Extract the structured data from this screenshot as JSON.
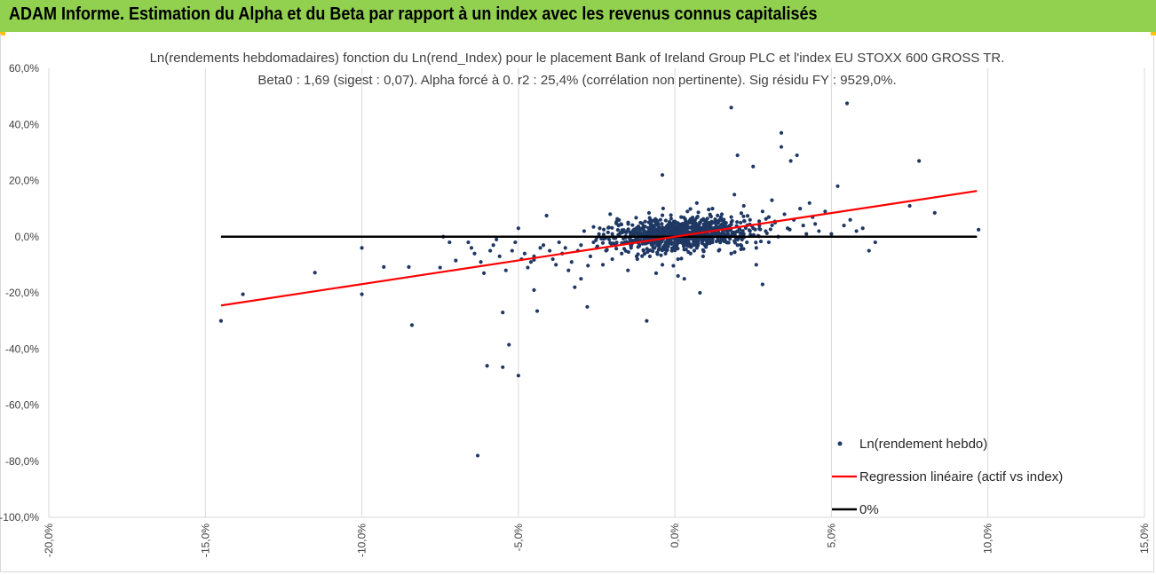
{
  "header": {
    "title": "ADAM Informe. Estimation du Alpha et du Beta par rapport à un index avec les revenus connus capitalisés"
  },
  "colors": {
    "banner": "#92d050",
    "accent": "#ffc000",
    "points": "#1f3864",
    "regression": "#ff0000",
    "zero": "#000000",
    "grid": "#d9d9d9"
  },
  "chart_data": {
    "type": "scatter",
    "title": "Ln(rendements hebdomadaires) fonction du Ln(rend_Index) pour le placement Bank of Ireland Group PLC et l'index EU STOXX 600 GROSS TR.",
    "subtitle": "Beta0 : 1,69 (sigest : 0,07). Alpha forcé à 0. r2 : 25,4% (corrélation non pertinente). Sig résidu FY : 9529,0%.",
    "xlabel": "",
    "ylabel": "",
    "xlim": [
      -0.2,
      0.15
    ],
    "ylim": [
      -1.0,
      0.6
    ],
    "x_ticks": [
      -0.2,
      -0.15,
      -0.1,
      -0.05,
      0.0,
      0.05,
      0.1,
      0.15
    ],
    "x_tick_labels": [
      "-20,0%",
      "-15,0%",
      "-10,0%",
      "-5,0%",
      "0,0%",
      "5,0%",
      "10,0%",
      "15,0%"
    ],
    "y_ticks": [
      0.6,
      0.4,
      0.2,
      0.0,
      -0.2,
      -0.4,
      -0.6,
      -0.8,
      -1.0
    ],
    "y_tick_labels": [
      "60,0%",
      "40,0%",
      "20,0%",
      "0,0%",
      "-20,0%",
      "-40,0%",
      "-60,0%",
      "-80,0%",
      "-100,0%"
    ],
    "grid": {
      "vertical": true,
      "horizontal": false
    },
    "legend_position": "bottom-right",
    "series": [
      {
        "name": "Ln(rendement hebdo)",
        "kind": "scatter",
        "points": [
          [
            -0.145,
            -0.3
          ],
          [
            -0.138,
            -0.205
          ],
          [
            -0.115,
            -0.128
          ],
          [
            -0.1,
            -0.04
          ],
          [
            -0.1,
            -0.205
          ],
          [
            -0.093,
            -0.108
          ],
          [
            -0.085,
            -0.108
          ],
          [
            -0.084,
            -0.315
          ],
          [
            -0.075,
            -0.11
          ],
          [
            -0.074,
            0.0
          ],
          [
            -0.072,
            -0.02
          ],
          [
            -0.07,
            -0.085
          ],
          [
            -0.066,
            -0.02
          ],
          [
            -0.065,
            -0.04
          ],
          [
            -0.064,
            -0.06
          ],
          [
            -0.063,
            -0.78
          ],
          [
            -0.062,
            -0.09
          ],
          [
            -0.061,
            -0.13
          ],
          [
            -0.06,
            -0.46
          ],
          [
            -0.059,
            -0.05
          ],
          [
            -0.058,
            -0.03
          ],
          [
            -0.057,
            -0.01
          ],
          [
            -0.056,
            -0.07
          ],
          [
            -0.055,
            -0.465
          ],
          [
            -0.055,
            -0.27
          ],
          [
            -0.054,
            -0.12
          ],
          [
            -0.053,
            -0.385
          ],
          [
            -0.052,
            -0.05
          ],
          [
            -0.051,
            -0.02
          ],
          [
            -0.05,
            -0.495
          ],
          [
            -0.05,
            0.03
          ],
          [
            -0.049,
            -0.08
          ],
          [
            -0.048,
            -0.06
          ],
          [
            -0.047,
            -0.11
          ],
          [
            -0.046,
            -0.09
          ],
          [
            -0.045,
            -0.07
          ],
          [
            -0.045,
            -0.19
          ],
          [
            -0.044,
            -0.265
          ],
          [
            -0.043,
            -0.04
          ],
          [
            -0.042,
            -0.03
          ],
          [
            -0.041,
            0.075
          ],
          [
            -0.04,
            -0.05
          ],
          [
            -0.039,
            -0.08
          ],
          [
            -0.038,
            -0.1
          ],
          [
            -0.037,
            -0.02
          ],
          [
            -0.036,
            -0.06
          ],
          [
            -0.035,
            -0.04
          ],
          [
            -0.034,
            -0.12
          ],
          [
            -0.033,
            -0.09
          ],
          [
            -0.032,
            -0.18
          ],
          [
            -0.031,
            -0.05
          ],
          [
            -0.03,
            -0.03
          ],
          [
            -0.03,
            -0.15
          ],
          [
            -0.029,
            0.02
          ],
          [
            -0.028,
            -0.25
          ],
          [
            -0.027,
            -0.07
          ],
          [
            -0.026,
            -0.02
          ],
          [
            -0.025,
            -0.04
          ],
          [
            -0.024,
            0.03
          ],
          [
            -0.023,
            -0.1
          ],
          [
            -0.022,
            -0.05
          ],
          [
            -0.021,
            -0.01
          ],
          [
            -0.02,
            -0.08
          ],
          [
            -0.02,
            0.01
          ],
          [
            -0.019,
            -0.03
          ],
          [
            -0.018,
            0.04
          ],
          [
            -0.017,
            -0.06
          ],
          [
            -0.016,
            -0.02
          ],
          [
            -0.015,
            -0.12
          ],
          [
            -0.015,
            0.02
          ],
          [
            -0.014,
            -0.04
          ],
          [
            -0.013,
            0.01
          ],
          [
            -0.012,
            -0.08
          ],
          [
            -0.012,
            -0.02
          ],
          [
            -0.011,
            0.05
          ],
          [
            -0.01,
            -0.05
          ],
          [
            -0.01,
            0.0
          ],
          [
            -0.009,
            -0.3
          ],
          [
            -0.008,
            0.02
          ],
          [
            -0.008,
            -0.07
          ],
          [
            -0.007,
            -0.03
          ],
          [
            -0.006,
            0.06
          ],
          [
            -0.005,
            -0.04
          ],
          [
            -0.005,
            0.03
          ],
          [
            -0.004,
            0.22
          ],
          [
            -0.004,
            -0.1
          ],
          [
            -0.003,
            0.01
          ],
          [
            -0.003,
            -0.06
          ],
          [
            -0.002,
            0.04
          ],
          [
            -0.002,
            -0.02
          ],
          [
            -0.001,
            0.0
          ],
          [
            0.0,
            0.05
          ],
          [
            0.0,
            -0.04
          ],
          [
            0.0,
            0.01
          ],
          [
            0.001,
            -0.08
          ],
          [
            0.001,
            0.03
          ],
          [
            0.002,
            -0.01
          ],
          [
            0.002,
            0.07
          ],
          [
            0.003,
            -0.15
          ],
          [
            0.003,
            0.02
          ],
          [
            0.004,
            -0.03
          ],
          [
            0.004,
            0.09
          ],
          [
            0.005,
            0.0
          ],
          [
            0.005,
            -0.06
          ],
          [
            0.006,
            0.04
          ],
          [
            0.006,
            -0.01
          ],
          [
            0.007,
            0.12
          ],
          [
            0.007,
            -0.04
          ],
          [
            0.008,
            0.02
          ],
          [
            0.009,
            -0.07
          ],
          [
            0.009,
            0.06
          ],
          [
            0.01,
            0.0
          ],
          [
            0.01,
            -0.03
          ],
          [
            0.011,
            0.05
          ],
          [
            0.012,
            -0.02
          ],
          [
            0.012,
            0.1
          ],
          [
            0.013,
            0.03
          ],
          [
            0.014,
            -0.05
          ],
          [
            0.014,
            0.01
          ],
          [
            0.015,
            0.08
          ],
          [
            0.016,
            -0.01
          ],
          [
            0.016,
            0.04
          ],
          [
            0.017,
            0.0
          ],
          [
            0.018,
            0.07
          ],
          [
            0.018,
            -0.06
          ],
          [
            0.019,
            0.15
          ],
          [
            0.02,
            0.02
          ],
          [
            0.02,
            -0.03
          ],
          [
            0.021,
            0.05
          ],
          [
            0.022,
            0.01
          ],
          [
            0.022,
            0.11
          ],
          [
            0.023,
            -0.02
          ],
          [
            0.024,
            0.06
          ],
          [
            0.025,
            0.03
          ],
          [
            0.025,
            0.25
          ],
          [
            0.026,
            -0.04
          ],
          [
            0.027,
            0.04
          ],
          [
            0.028,
            0.09
          ],
          [
            0.028,
            -0.17
          ],
          [
            0.029,
            0.02
          ],
          [
            0.03,
            0.07
          ],
          [
            0.03,
            -0.02
          ],
          [
            0.031,
            0.13
          ],
          [
            0.032,
            0.05
          ],
          [
            0.033,
            0.0
          ],
          [
            0.034,
            0.37
          ],
          [
            0.034,
            0.32
          ],
          [
            0.035,
            0.08
          ],
          [
            0.036,
            0.03
          ],
          [
            0.037,
            0.27
          ],
          [
            0.038,
            0.06
          ],
          [
            0.039,
            0.29
          ],
          [
            0.04,
            0.1
          ],
          [
            0.041,
            0.04
          ],
          [
            0.042,
            0.01
          ],
          [
            0.043,
            0.12
          ],
          [
            0.044,
            0.07
          ],
          [
            0.046,
            0.02
          ],
          [
            0.048,
            0.09
          ],
          [
            0.05,
            0.01
          ],
          [
            0.052,
            0.18
          ],
          [
            0.054,
            0.04
          ],
          [
            0.055,
            0.475
          ],
          [
            0.056,
            0.06
          ],
          [
            0.058,
            0.02
          ],
          [
            0.06,
            0.03
          ],
          [
            0.062,
            -0.05
          ],
          [
            0.064,
            -0.02
          ],
          [
            0.018,
            0.46
          ],
          [
            0.02,
            0.29
          ],
          [
            0.075,
            0.11
          ],
          [
            0.078,
            0.27
          ],
          [
            0.083,
            0.085
          ],
          [
            0.097,
            0.025
          ],
          [
            -0.026,
            0.035
          ],
          [
            -0.019,
            -0.005
          ],
          [
            0.008,
            -0.2
          ],
          [
            -0.006,
            -0.13
          ],
          [
            0.001,
            -0.14
          ],
          [
            0.026,
            -0.1
          ]
        ],
        "cluster": {
          "x_mean": 0.002,
          "x_sd": 0.011,
          "y_mean": 0.01,
          "y_sd": 0.028,
          "count": 900
        }
      },
      {
        "name": "Regression linéaire (actif vs index)",
        "kind": "line",
        "points": [
          [
            -0.145,
            -0.245
          ],
          [
            0.0965,
            0.163
          ]
        ]
      },
      {
        "name": "0%",
        "kind": "line",
        "points": [
          [
            -0.145,
            0.0
          ],
          [
            0.0965,
            0.0
          ]
        ]
      }
    ]
  }
}
